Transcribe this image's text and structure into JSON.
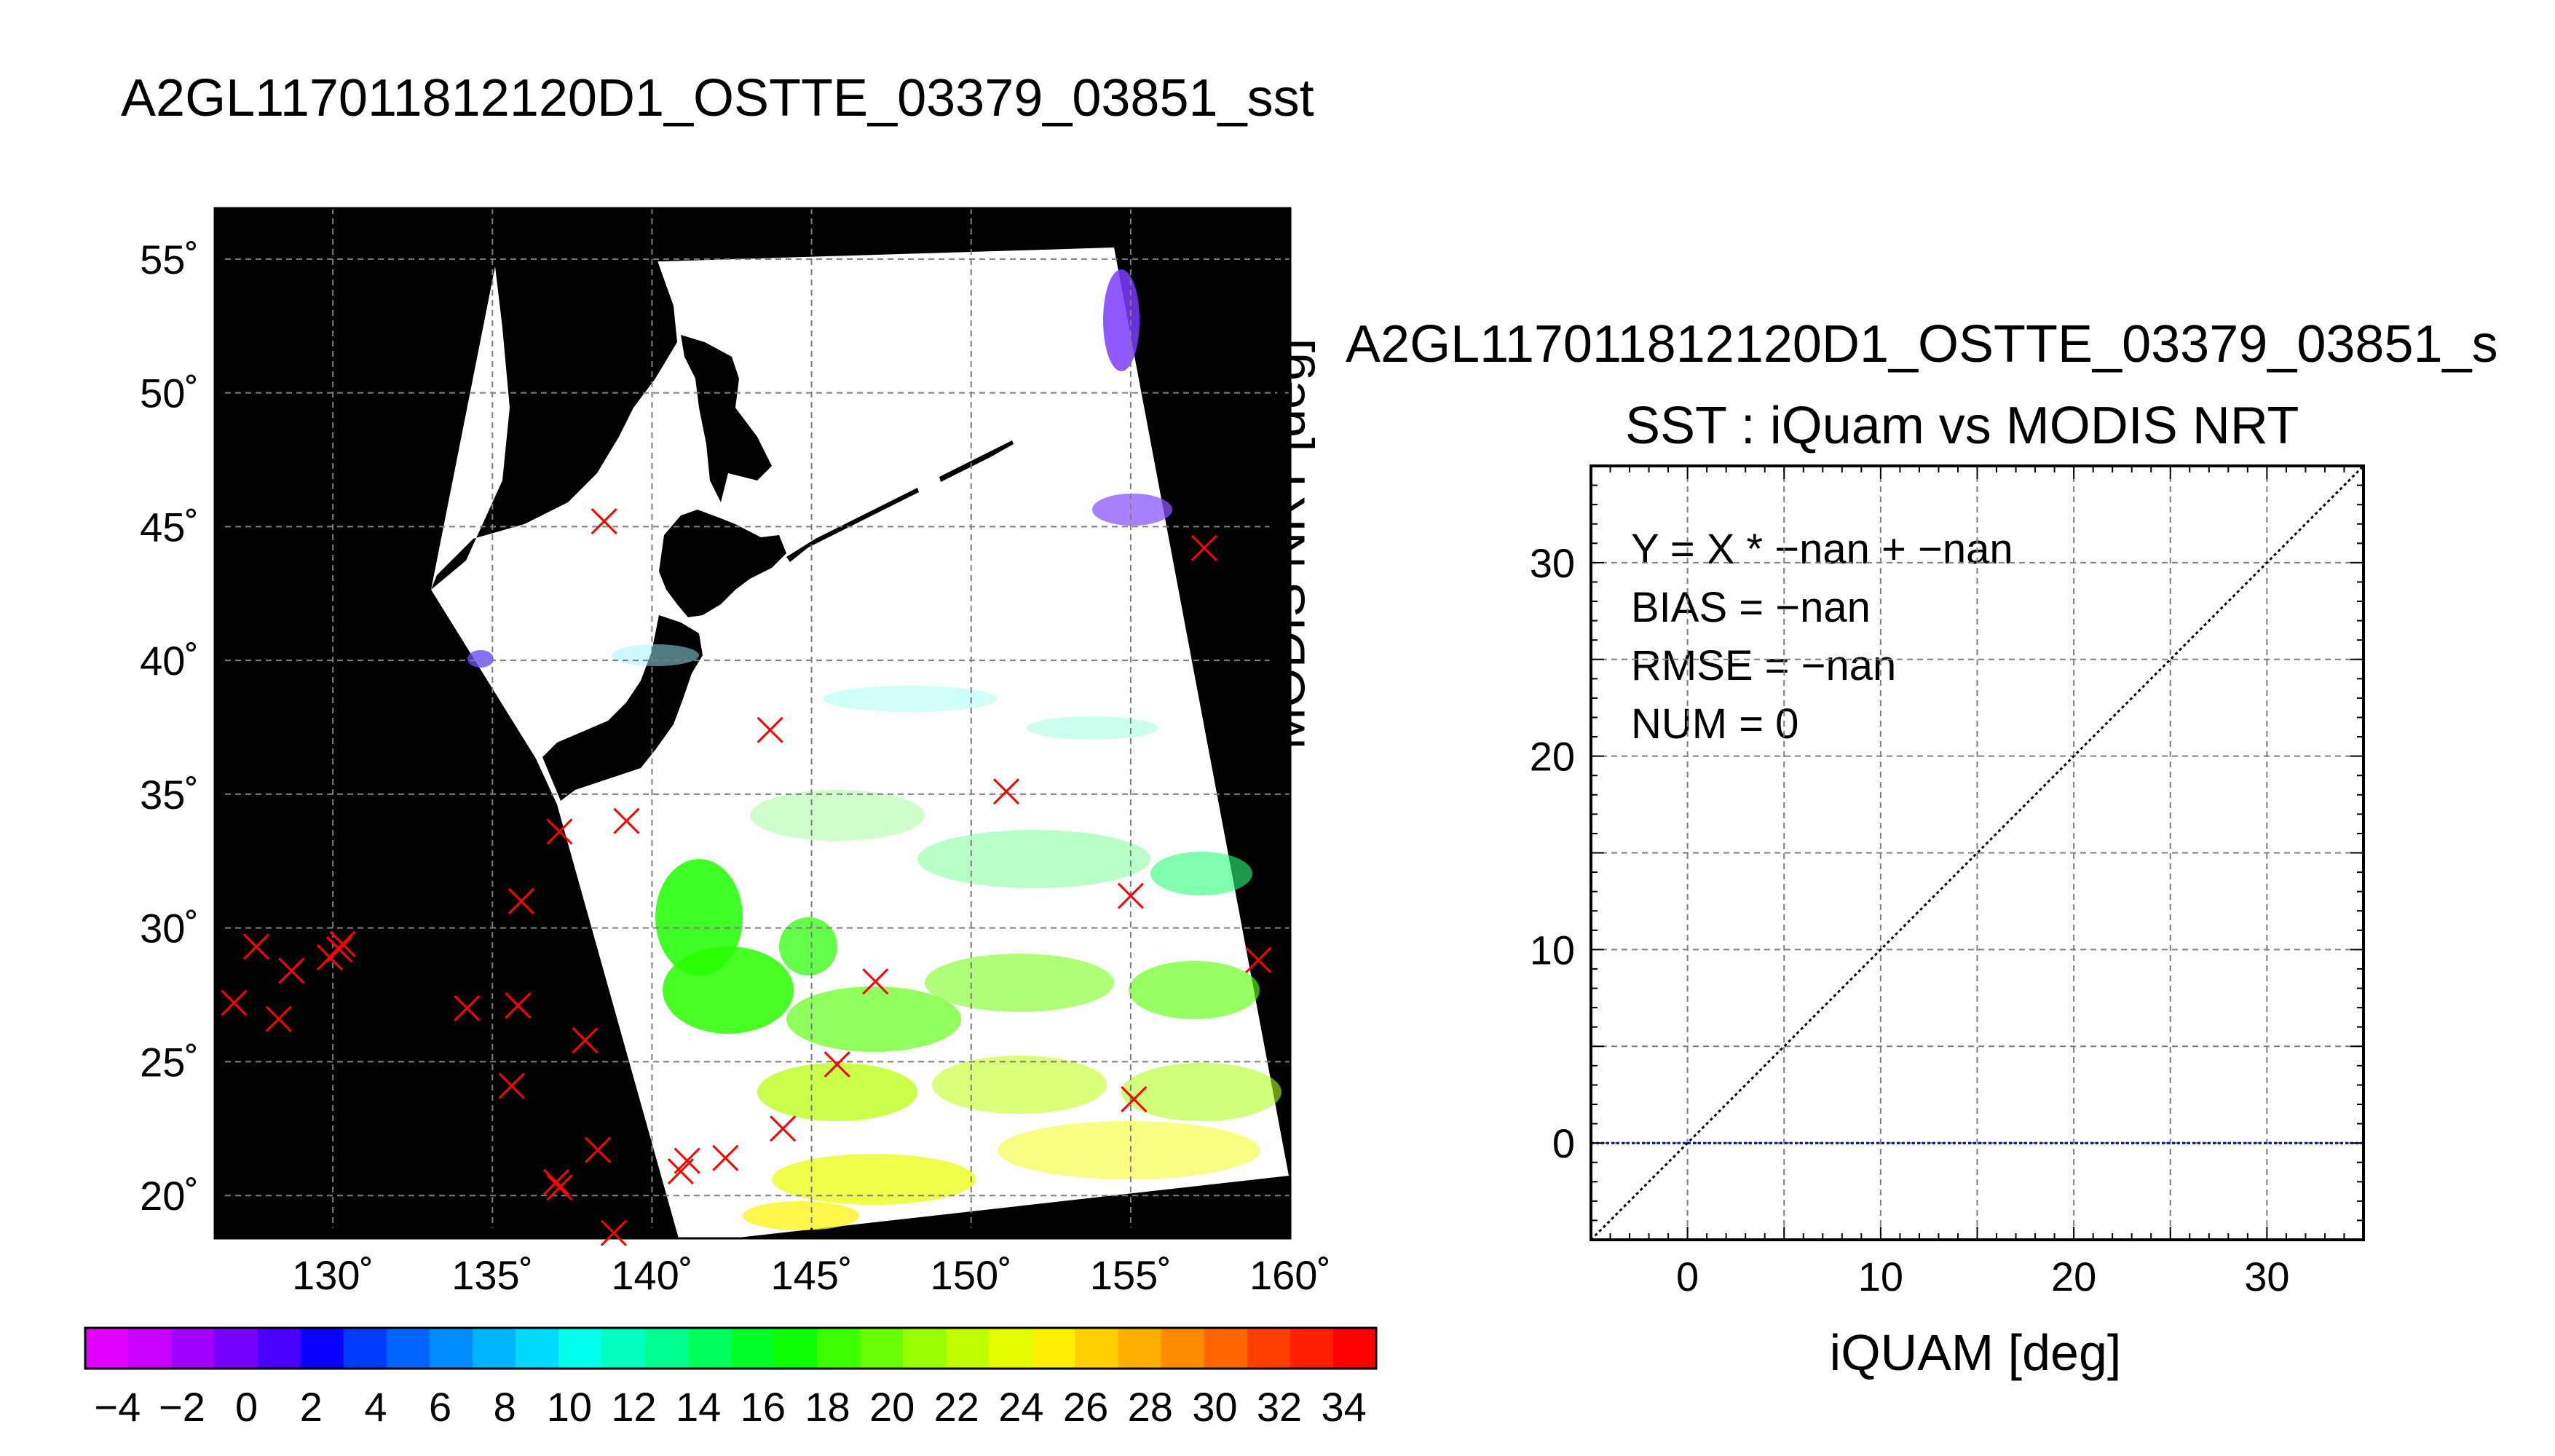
{
  "main_title": "A2GL117011812120D1_OSTTE_03379_03851_sst",
  "chart_data": [
    {
      "type": "map",
      "lon_ticks": [
        130,
        135,
        140,
        145,
        150,
        155,
        160
      ],
      "lon_tick_labels": [
        "130˚",
        "135˚",
        "140˚",
        "145˚",
        "150˚",
        "155˚",
        "160˚"
      ],
      "lat_ticks": [
        20,
        25,
        30,
        35,
        40,
        45,
        50,
        55
      ],
      "lat_tick_labels": [
        "20˚",
        "25˚",
        "30˚",
        "35˚",
        "40˚",
        "45˚",
        "50˚",
        "55˚"
      ],
      "xlim": [
        126.3,
        160
      ],
      "ylim": [
        18.4,
        56.9
      ],
      "grid": true,
      "markers": {
        "symbol": "x",
        "color": "#ff0000",
        "points": [
          [
            138.5,
            45.2
          ],
          [
            157.3,
            44.2
          ],
          [
            143.7,
            37.4
          ],
          [
            151.1,
            35.1
          ],
          [
            139.2,
            34.0
          ],
          [
            137.1,
            33.6
          ],
          [
            135.9,
            31.0
          ],
          [
            155.0,
            31.2
          ],
          [
            127.6,
            29.3
          ],
          [
            130.2,
            29.2
          ],
          [
            129.9,
            28.9
          ],
          [
            130.3,
            29.4
          ],
          [
            128.7,
            28.4
          ],
          [
            159.0,
            28.8
          ],
          [
            147.0,
            28.0
          ],
          [
            126.9,
            27.2
          ],
          [
            128.3,
            26.6
          ],
          [
            134.2,
            27.0
          ],
          [
            135.8,
            27.1
          ],
          [
            137.9,
            25.8
          ],
          [
            145.8,
            24.9
          ],
          [
            135.6,
            24.1
          ],
          [
            155.1,
            23.6
          ],
          [
            144.1,
            22.5
          ],
          [
            138.3,
            21.7
          ],
          [
            142.3,
            21.4
          ],
          [
            141.1,
            21.3
          ],
          [
            140.9,
            20.9
          ],
          [
            137.0,
            20.5
          ],
          [
            137.1,
            20.3
          ],
          [
            138.8,
            18.6
          ]
        ]
      },
      "colorbar": {
        "tick_labels": [
          "-4",
          "-2",
          "0",
          "2",
          "4",
          "6",
          "8",
          "10",
          "12",
          "14",
          "16",
          "18",
          "20",
          "22",
          "24",
          "26",
          "28",
          "30",
          "32",
          "34"
        ],
        "range": [
          -5,
          35
        ],
        "colors": [
          "#e100ff",
          "#c700ff",
          "#a000ff",
          "#7800ff",
          "#4a00ff",
          "#0a00ff",
          "#003cff",
          "#0064ff",
          "#008cff",
          "#00b4ff",
          "#00d9ff",
          "#00ffea",
          "#00ffc0",
          "#00ff90",
          "#00ff5a",
          "#00ff28",
          "#0bff00",
          "#3cff00",
          "#6aff00",
          "#96ff00",
          "#c0ff00",
          "#e6ff00",
          "#ffef00",
          "#ffcf00",
          "#ffaf00",
          "#ff8c00",
          "#ff6600",
          "#ff4000",
          "#ff2000",
          "#ff0000"
        ]
      }
    },
    {
      "type": "scatter",
      "title": "A2GL117011812120D1_OSTTE_03379_03851_s",
      "subtitle": "SST : iQuam vs MODIS NRT",
      "xlabel": "iQUAM [deg]",
      "ylabel": "MODIS NRT [deg]",
      "xlim": [
        -5,
        35
      ],
      "ylim": [
        -5,
        35
      ],
      "x_ticks": [
        0,
        10,
        20,
        30
      ],
      "x_tick_labels": [
        "0",
        "10",
        "20",
        "30"
      ],
      "y_ticks": [
        0,
        10,
        20,
        30
      ],
      "y_tick_labels": [
        "0",
        "10",
        "20",
        "30"
      ],
      "grid": true,
      "stats": [
        "Y = X * −nan + −nan",
        "BIAS = −nan",
        "RMSE = −nan",
        "NUM = 0"
      ],
      "identity_line": {
        "from": [
          -5,
          -5
        ],
        "to": [
          35,
          35
        ],
        "color": "#000000",
        "style": "dotted"
      },
      "zero_line": {
        "y": 0,
        "color": "#0000aa",
        "style": "dotted"
      },
      "points": []
    }
  ],
  "colors": {
    "land": "#000000",
    "no_data": "#ffffff",
    "marker": "#ff0000"
  }
}
